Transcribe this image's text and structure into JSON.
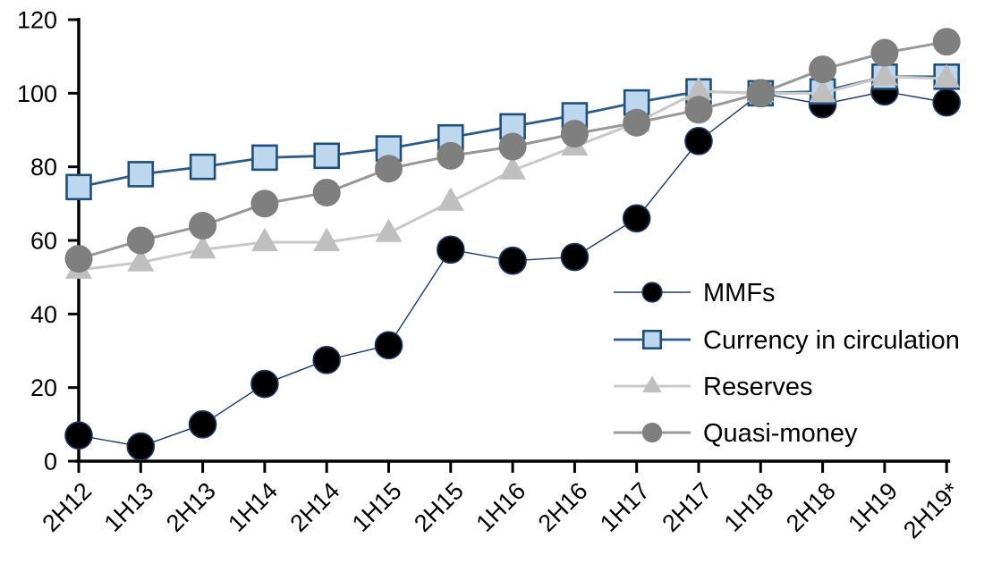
{
  "chart_data": {
    "type": "line",
    "title": "",
    "xlabel": "",
    "ylabel": "",
    "categories": [
      "2H12",
      "1H13",
      "2H13",
      "1H14",
      "2H14",
      "1H15",
      "2H15",
      "1H16",
      "2H16",
      "1H17",
      "2H17",
      "1H18",
      "2H18",
      "1H19",
      "2H19*"
    ],
    "x_tick_labels": [
      "2H12",
      "1H13",
      "2H13",
      "1H14",
      "2H14",
      "1H15",
      "2H15",
      "1H16",
      "2H16",
      "1H17",
      "2H17",
      "1H18",
      "2H18",
      "1H19",
      "2H19*"
    ],
    "y_axis": {
      "min": 0,
      "max": 120,
      "step": 20,
      "tick_labels": [
        "0",
        "20",
        "40",
        "60",
        "80",
        "100",
        "120"
      ]
    },
    "grid": false,
    "background_color": "#FFFFFF",
    "axis_color": "#000000",
    "legend_position": "inside-right",
    "series": [
      {
        "name": "MMFs",
        "marker": "circle",
        "marker_fill": "#000000",
        "marker_stroke": "#1F3864",
        "line_color": "#1F3864",
        "line_width": 1.4,
        "marker_size": 15,
        "values": [
          7,
          4,
          10,
          21,
          27.5,
          31.5,
          57.5,
          54.5,
          55.5,
          66,
          87,
          100,
          97,
          100.5,
          97.5
        ]
      },
      {
        "name": "Currency in circulation",
        "marker": "square",
        "marker_fill": "#BDD7EE",
        "marker_stroke": "#1F4E79",
        "line_color": "#2E5C8A",
        "line_width": 2.8,
        "marker_size": 13.5,
        "values": [
          74.5,
          78,
          80,
          82.5,
          83,
          85,
          88,
          91,
          94,
          97.5,
          100.5,
          100,
          100.5,
          104.5,
          104.5
        ]
      },
      {
        "name": "Reserves",
        "marker": "triangle",
        "marker_fill": "#BFBFBF",
        "marker_stroke": "none",
        "line_color": "#C8C8C8",
        "line_width": 3,
        "marker_size": 15,
        "values": [
          52,
          54,
          57.5,
          59.5,
          59.5,
          62,
          70.5,
          79,
          85.5,
          92,
          100.5,
          100,
          100,
          104.5,
          104
        ]
      },
      {
        "name": "Quasi-money",
        "marker": "circle",
        "marker_fill": "#7F7F7F",
        "marker_stroke": "none",
        "line_color": "#989898",
        "line_width": 3,
        "marker_size": 15.5,
        "values": [
          55,
          60,
          64,
          70,
          73,
          79.5,
          83,
          85.5,
          89,
          92,
          95.5,
          100,
          106.5,
          111,
          114
        ]
      }
    ]
  }
}
